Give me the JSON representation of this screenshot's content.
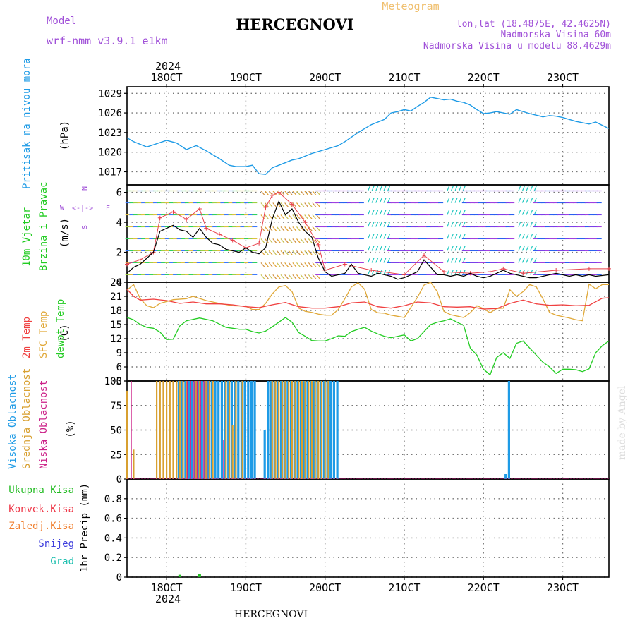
{
  "header": {
    "model_label": "Model",
    "model_name": "wrf-nmm_v3.9.1 e1km",
    "title": "HERCEGNOVI",
    "subtitle": "Meteogram",
    "lonlat": "lon,lat (18.4875E, 42.4625N)",
    "elevation": "Nadmorska Visina 60m",
    "model_elevation": "Nadmorska Visina u modelu 88.4629m",
    "footer_title": "HERCEGNOVI",
    "watermark": "made by Angel"
  },
  "colors": {
    "pressure": "#1e9be6",
    "wind_speed": "#000000",
    "wind_gust": "#e8404a",
    "temp_2m": "#f04040",
    "temp_sfc": "#e0a838",
    "dewpoint": "#22cc22",
    "high_cloud": "#1e9be6",
    "mid_cloud": "#d8a030",
    "low_cloud": "#cc2288",
    "total_precip": "#22bb22",
    "purple_text": "#a050d8",
    "subtitle": "#f0c070"
  },
  "time_axis": {
    "top_year": "2024",
    "bottom_year": "2024",
    "tick_labels": [
      "18OCT",
      "19OCT",
      "20OCT",
      "21OCT",
      "22OCT",
      "23OCT"
    ],
    "tick_hours": [
      12,
      36,
      60,
      84,
      108,
      132
    ],
    "range_hours": [
      0,
      146
    ]
  },
  "chart_data": [
    {
      "type": "line",
      "panel": "pressure",
      "ylabel": "Pritisak na nivou mora",
      "unit": "(hPa)",
      "ylim": [
        1015,
        1030
      ],
      "yticks": [
        1017,
        1020,
        1023,
        1026,
        1029
      ],
      "series": [
        {
          "x": [
            0,
            2,
            6,
            12,
            15,
            18,
            21,
            24,
            28,
            31,
            33,
            36,
            38,
            40,
            42,
            44,
            47,
            50,
            52,
            56,
            60,
            64,
            66,
            70,
            74,
            78,
            80,
            82,
            84,
            86,
            88,
            90,
            92,
            94,
            96,
            98,
            100,
            102,
            104,
            106,
            108,
            110,
            112,
            116,
            118,
            122,
            126,
            128,
            130,
            132,
            136,
            140,
            142,
            146
          ],
          "y": [
            1022.2,
            1021.6,
            1020.8,
            1021.8,
            1021.4,
            1020.4,
            1021.0,
            1020.2,
            1019.0,
            1018.0,
            1017.8,
            1017.8,
            1018.0,
            1016.7,
            1016.6,
            1017.6,
            1018.2,
            1018.8,
            1019.0,
            1019.8,
            1020.4,
            1021.0,
            1021.6,
            1023.0,
            1024.2,
            1025.0,
            1026.0,
            1026.2,
            1026.5,
            1026.3,
            1027.0,
            1027.6,
            1028.4,
            1028.2,
            1028.0,
            1028.1,
            1027.8,
            1027.6,
            1027.2,
            1026.5,
            1025.9,
            1026.0,
            1026.2,
            1025.8,
            1026.5,
            1025.9,
            1025.4,
            1025.6,
            1025.5,
            1025.3,
            1024.7,
            1024.3,
            1024.6,
            1023.6
          ]
        }
      ]
    },
    {
      "type": "line",
      "panel": "wind",
      "ylabel": "10m Vjetar Brzina i Pravac",
      "unit": "(m/s)",
      "compass": "N E S W",
      "ylim": [
        0,
        6.5
      ],
      "yticks": [
        0,
        2,
        4,
        6
      ],
      "series": [
        {
          "x": [
            0,
            2,
            4,
            6,
            8,
            10,
            12,
            14,
            16,
            18,
            20,
            22,
            24,
            26,
            28,
            30,
            32,
            34,
            36,
            38,
            40,
            42,
            44,
            46,
            48,
            50,
            52,
            54,
            56,
            58,
            60,
            62,
            64,
            66,
            68,
            70,
            72,
            74,
            76,
            78,
            80,
            82,
            84,
            86,
            88,
            90,
            92,
            94,
            96,
            98,
            100,
            102,
            104,
            106,
            108,
            110,
            112,
            114,
            116,
            118,
            120,
            122,
            124,
            126,
            128,
            130,
            132,
            134,
            136,
            138,
            140,
            142,
            146
          ],
          "y": [
            0.6,
            1.0,
            1.2,
            1.6,
            2.0,
            3.4,
            3.6,
            3.8,
            3.5,
            3.4,
            3.0,
            3.6,
            3.0,
            2.6,
            2.5,
            2.2,
            2.1,
            2.0,
            2.3,
            2.0,
            1.9,
            2.3,
            4.2,
            5.4,
            4.5,
            4.9,
            4.0,
            3.4,
            3.0,
            1.6,
            0.7,
            0.4,
            0.5,
            0.6,
            1.2,
            0.6,
            0.5,
            0.4,
            0.6,
            0.5,
            0.4,
            0.2,
            0.3,
            0.5,
            0.7,
            1.5,
            1.0,
            0.5,
            0.5,
            0.4,
            0.5,
            0.4,
            0.6,
            0.4,
            0.3,
            0.4,
            0.6,
            0.8,
            0.6,
            0.5,
            0.4,
            0.3,
            0.3,
            0.4,
            0.5,
            0.6,
            0.5,
            0.4,
            0.5,
            0.4,
            0.5,
            0.4,
            0.5
          ]
        },
        {
          "x": [
            0,
            4,
            8,
            10,
            14,
            18,
            22,
            24,
            28,
            32,
            36,
            40,
            42,
            44,
            46,
            50,
            54,
            58,
            60,
            66,
            74,
            84,
            90,
            96,
            104,
            110,
            114,
            120,
            130,
            140,
            146
          ],
          "y": [
            1.2,
            1.5,
            2.0,
            4.3,
            4.7,
            4.2,
            4.9,
            3.6,
            3.2,
            2.8,
            2.3,
            2.6,
            5.0,
            5.8,
            6.0,
            5.2,
            4.0,
            2.5,
            0.8,
            1.2,
            0.8,
            0.5,
            1.8,
            0.7,
            0.6,
            0.7,
            0.9,
            0.6,
            0.8,
            0.9,
            0.9
          ]
        }
      ]
    },
    {
      "type": "line",
      "panel": "temperature",
      "legend": [
        "2m Temp",
        "SFC Temp",
        "dewpt Temp"
      ],
      "unit": "(C)",
      "ylim": [
        3,
        24
      ],
      "yticks": [
        3,
        6,
        9,
        12,
        15,
        18,
        21,
        24
      ],
      "series": [
        {
          "name": "2m Temp",
          "x": [
            0,
            2,
            4,
            8,
            12,
            16,
            20,
            24,
            28,
            32,
            36,
            40,
            44,
            48,
            52,
            56,
            60,
            64,
            68,
            72,
            76,
            80,
            84,
            88,
            92,
            96,
            100,
            104,
            108,
            112,
            116,
            120,
            124,
            128,
            132,
            136,
            140,
            144,
            146
          ],
          "y": [
            22.5,
            21.0,
            20.2,
            20.4,
            20.1,
            19.5,
            19.8,
            19.4,
            19.4,
            19.2,
            18.8,
            18.6,
            19.2,
            19.7,
            18.8,
            18.5,
            18.5,
            18.8,
            19.6,
            19.8,
            18.8,
            18.5,
            19.0,
            19.8,
            19.6,
            18.8,
            18.7,
            18.8,
            18.3,
            18.4,
            19.5,
            20.2,
            19.4,
            19.1,
            19.2,
            19.0,
            19.1,
            20.6,
            20.7
          ]
        },
        {
          "name": "SFC Temp",
          "x": [
            0,
            2,
            4,
            6,
            8,
            10,
            14,
            18,
            20,
            24,
            28,
            32,
            36,
            38,
            40,
            42,
            44,
            46,
            48,
            50,
            52,
            54,
            56,
            58,
            60,
            62,
            64,
            66,
            68,
            70,
            72,
            74,
            76,
            78,
            80,
            84,
            88,
            90,
            92,
            94,
            96,
            98,
            100,
            102,
            104,
            106,
            108,
            110,
            112,
            114,
            116,
            118,
            120,
            122,
            124,
            126,
            128,
            130,
            132,
            134,
            136,
            138,
            140,
            142,
            144,
            146
          ],
          "y": [
            22.3,
            23.5,
            20.5,
            19.0,
            18.6,
            19.5,
            20.3,
            20.5,
            21.0,
            20.1,
            19.5,
            19.0,
            18.9,
            18.2,
            18.2,
            19.5,
            21.5,
            23.0,
            23.3,
            22.0,
            18.5,
            17.8,
            17.6,
            17.2,
            17.0,
            17.0,
            18.2,
            20.5,
            23.0,
            23.9,
            22.5,
            18.2,
            17.5,
            17.4,
            17.0,
            16.5,
            20.8,
            23.4,
            24.0,
            22.0,
            17.8,
            17.1,
            16.8,
            16.5,
            17.5,
            19.0,
            18.4,
            17.5,
            18.4,
            18.5,
            22.4,
            21.0,
            22.0,
            23.5,
            23.0,
            20.5,
            17.6,
            17.0,
            16.7,
            16.4,
            16.0,
            15.8,
            23.6,
            22.6,
            23.5,
            23.5
          ]
        },
        {
          "name": "dewpt Temp",
          "x": [
            0,
            2,
            4,
            6,
            8,
            10,
            12,
            14,
            16,
            18,
            22,
            26,
            30,
            32,
            34,
            36,
            38,
            40,
            42,
            44,
            46,
            48,
            50,
            52,
            54,
            56,
            58,
            60,
            62,
            64,
            66,
            68,
            70,
            72,
            74,
            76,
            78,
            80,
            84,
            86,
            88,
            90,
            92,
            94,
            96,
            98,
            100,
            102,
            104,
            106,
            108,
            110,
            112,
            114,
            116,
            118,
            120,
            122,
            124,
            126,
            128,
            130,
            132,
            134,
            136,
            138,
            140,
            142,
            144,
            146
          ],
          "y": [
            16.5,
            16.0,
            15.0,
            14.4,
            14.2,
            13.4,
            11.8,
            11.9,
            14.7,
            15.8,
            16.4,
            15.8,
            14.4,
            14.2,
            14.0,
            14.0,
            13.5,
            13.2,
            13.6,
            14.5,
            15.5,
            16.5,
            15.5,
            13.3,
            12.5,
            11.6,
            11.5,
            11.5,
            12.0,
            12.6,
            12.5,
            13.5,
            14.0,
            14.4,
            13.6,
            13.0,
            12.5,
            12.2,
            12.8,
            11.5,
            12.0,
            13.5,
            15.0,
            15.5,
            15.8,
            16.2,
            15.5,
            14.8,
            10.0,
            8.5,
            5.5,
            4.3,
            8.0,
            9.0,
            7.8,
            11.0,
            11.5,
            10.0,
            8.5,
            7.0,
            6.0,
            4.6,
            5.5,
            5.5,
            5.4,
            5.0,
            5.6,
            9.0,
            10.5,
            11.5
          ]
        }
      ]
    },
    {
      "type": "bar",
      "panel": "cloud",
      "legend": [
        "Visoka Oblacnost",
        "Srednja Oblacnost",
        "Niska Oblacnost"
      ],
      "unit": "(%)",
      "ylim": [
        0,
        100
      ],
      "yticks": [
        0,
        25,
        50,
        75,
        100
      ],
      "series": [
        {
          "name": "Visoka Oblacnost",
          "x": [
            16,
            17,
            18,
            19,
            20,
            21,
            22,
            23,
            24,
            25,
            26,
            27,
            28,
            29,
            30,
            31,
            32,
            33,
            34,
            35,
            36,
            37,
            38,
            39,
            42,
            43,
            44,
            45,
            46,
            47,
            48,
            49,
            50,
            51,
            52,
            53,
            54,
            55,
            56,
            57,
            58,
            59,
            60,
            61,
            62,
            63,
            64,
            115,
            116
          ],
          "y": [
            100,
            100,
            100,
            100,
            100,
            100,
            100,
            100,
            100,
            100,
            100,
            100,
            100,
            100,
            100,
            100,
            100,
            100,
            100,
            100,
            100,
            100,
            100,
            100,
            50,
            100,
            100,
            100,
            100,
            100,
            100,
            100,
            100,
            100,
            100,
            100,
            100,
            100,
            100,
            100,
            100,
            100,
            100,
            100,
            100,
            100,
            100,
            5,
            100
          ]
        },
        {
          "name": "Srednja Oblacnost",
          "x": [
            0,
            1,
            2,
            9,
            10,
            11,
            12,
            13,
            14,
            15,
            16,
            17,
            18,
            21,
            22,
            24,
            25,
            26,
            30,
            31,
            32,
            33,
            35,
            44,
            45,
            46,
            47,
            48,
            49,
            50,
            51,
            52,
            53,
            54,
            55,
            56,
            57,
            58,
            59,
            60,
            61
          ],
          "y": [
            90,
            0,
            30,
            100,
            100,
            100,
            100,
            100,
            100,
            100,
            100,
            100,
            100,
            100,
            100,
            100,
            100,
            100,
            100,
            100,
            55,
            100,
            100,
            100,
            100,
            100,
            100,
            100,
            100,
            100,
            100,
            100,
            100,
            100,
            100,
            100,
            100,
            100,
            100,
            100,
            100
          ]
        },
        {
          "name": "Niska Oblacnost",
          "x": [
            1,
            18,
            19,
            20,
            21,
            22,
            23,
            24,
            29
          ],
          "y": [
            100,
            100,
            100,
            100,
            100,
            100,
            100,
            100,
            40
          ]
        }
      ]
    },
    {
      "type": "bar",
      "panel": "precip",
      "legend": [
        "Ukupna Kisa",
        "Konvek.Kisa",
        "Zaledj.Kisa",
        "Snijeg",
        "Grad"
      ],
      "unit": "1hr Precip (mm)",
      "ylim": [
        0,
        1.0
      ],
      "yticks": [
        0,
        0.2,
        0.4,
        0.6,
        0.8
      ],
      "series": [
        {
          "name": "Ukupna Kisa",
          "x": [
            16,
            22
          ],
          "y": [
            0.01,
            0.015
          ]
        }
      ]
    }
  ]
}
